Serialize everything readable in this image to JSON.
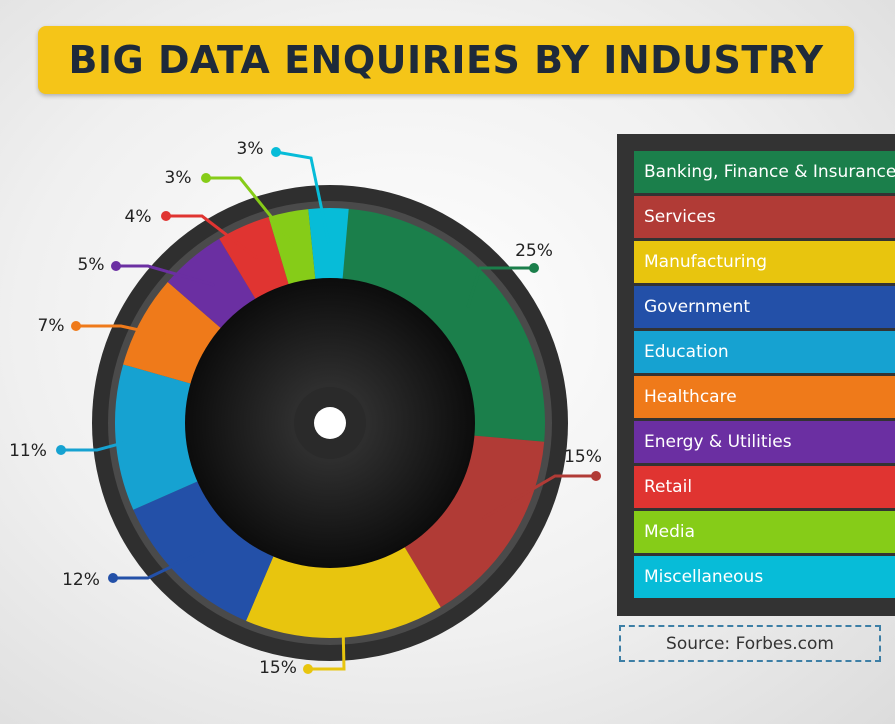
{
  "colors": {
    "banner": "#f5c518",
    "title_text": "#1e2a3a",
    "legend_bg": "#333333",
    "ring_outer": "#2f2f2f",
    "hole": "#141414"
  },
  "source": "Source: Forbes.com",
  "chart_data": {
    "type": "pie",
    "title": "BIG DATA ENQUIRIES BY INDUSTRY",
    "legend_position": "right",
    "series": [
      {
        "name": "Banking, Finance & Insurance",
        "value": 25,
        "label": "25%",
        "color": "#1b7f4b"
      },
      {
        "name": "Services",
        "value": 15,
        "label": "15%",
        "color": "#b13b36"
      },
      {
        "name": "Manufacturing",
        "value": 15,
        "label": "15%",
        "color": "#e8c50e"
      },
      {
        "name": "Government",
        "value": 12,
        "label": "12%",
        "color": "#2350a8"
      },
      {
        "name": "Education",
        "value": 11,
        "label": "11%",
        "color": "#16a2d1"
      },
      {
        "name": "Healthcare",
        "value": 7,
        "label": "7%",
        "color": "#ef7a1a"
      },
      {
        "name": "Energy & Utilities",
        "value": 5,
        "label": "5%",
        "color": "#6b2fa2"
      },
      {
        "name": "Retail",
        "value": 4,
        "label": "4%",
        "color": "#e03431"
      },
      {
        "name": "Media",
        "value": 3,
        "label": "3%",
        "color": "#86cc18"
      },
      {
        "name": "Miscellaneous",
        "value": 3,
        "label": "3%",
        "color": "#07bcd8"
      }
    ]
  }
}
